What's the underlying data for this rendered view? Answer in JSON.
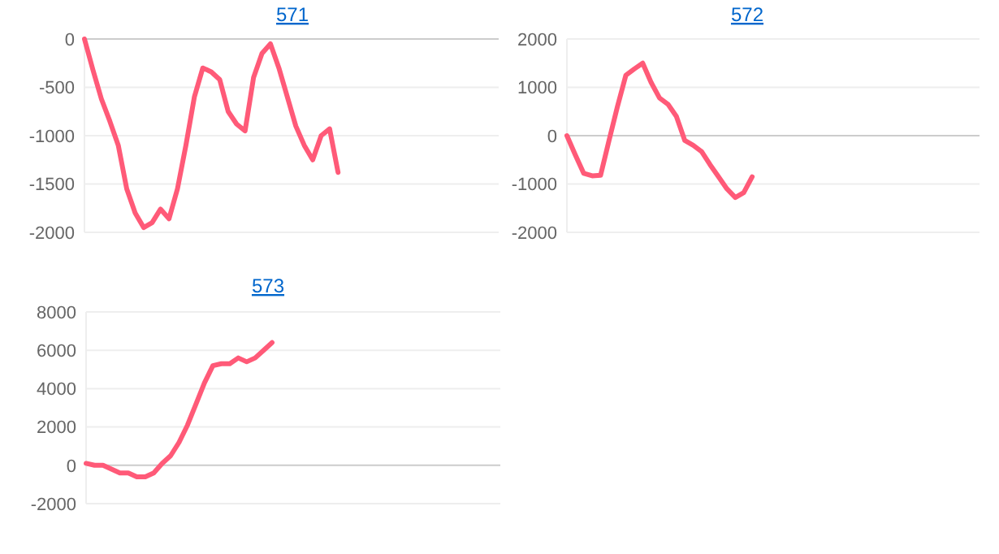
{
  "chart_data": [
    {
      "type": "line",
      "title": "571",
      "categories": [
        null,
        null,
        null,
        null,
        null,
        null,
        null,
        null,
        null,
        null,
        null,
        null,
        null,
        null,
        null,
        null,
        null,
        null,
        null,
        null,
        null,
        null,
        null,
        null,
        null,
        null,
        null,
        null,
        null,
        null,
        null,
        null,
        null,
        null,
        null,
        null,
        null,
        null,
        null,
        null,
        null,
        null,
        null,
        null,
        null,
        null,
        null,
        null,
        null,
        null
      ],
      "series": [
        {
          "color": "#ff5a78",
          "values": [
            0,
            -320,
            -620,
            -850,
            -1100,
            -1550,
            -1800,
            -1950,
            -1900,
            -1760,
            -1860,
            -1550,
            -1100,
            -600,
            -300,
            -340,
            -420,
            -750,
            -880,
            -950,
            -400,
            -150,
            -50,
            -300,
            -600,
            -900,
            -1100,
            -1250,
            -1000,
            -930,
            -1380,
            null,
            null,
            null,
            null,
            null,
            null,
            null,
            null,
            null,
            null,
            null,
            null,
            null,
            null,
            null,
            null,
            null,
            null,
            null
          ]
        }
      ],
      "ylim": [
        -2000,
        0
      ],
      "yticks": [
        -2000,
        -1500,
        -1000,
        -500,
        0
      ],
      "grid": "y",
      "marker": "none",
      "line_style": "solid",
      "tick_labels": "y"
    },
    {
      "type": "line",
      "title": "572",
      "categories": [
        null,
        null,
        null,
        null,
        null,
        null,
        null,
        null,
        null,
        null,
        null,
        null,
        null,
        null,
        null,
        null,
        null,
        null,
        null,
        null,
        null,
        null,
        null,
        null,
        null,
        null,
        null,
        null,
        null,
        null,
        null,
        null,
        null,
        null,
        null,
        null,
        null,
        null,
        null,
        null,
        null,
        null,
        null,
        null,
        null,
        null,
        null,
        null,
        null,
        null
      ],
      "series": [
        {
          "color": "#ff5a78",
          "values": [
            0,
            -400,
            -780,
            -830,
            -820,
            -100,
            600,
            1250,
            1380,
            1500,
            1100,
            780,
            650,
            400,
            -100,
            -200,
            -330,
            -600,
            -850,
            -1100,
            -1280,
            -1180,
            -850,
            null,
            null,
            null,
            null,
            null,
            null,
            null,
            null,
            null,
            null,
            null,
            null,
            null,
            null,
            null,
            null,
            null,
            null,
            null,
            null,
            null,
            null,
            null,
            null,
            null,
            null,
            null
          ]
        }
      ],
      "ylim": [
        -2000,
        2000
      ],
      "yticks": [
        -2000,
        -1000,
        0,
        1000,
        2000
      ],
      "grid": "y",
      "marker": "none",
      "line_style": "solid",
      "tick_labels": "y"
    },
    {
      "type": "line",
      "title": "573",
      "categories": [
        null,
        null,
        null,
        null,
        null,
        null,
        null,
        null,
        null,
        null,
        null,
        null,
        null,
        null,
        null,
        null,
        null,
        null,
        null,
        null,
        null,
        null,
        null,
        null,
        null,
        null,
        null,
        null,
        null,
        null,
        null,
        null,
        null,
        null,
        null,
        null,
        null,
        null,
        null,
        null,
        null,
        null,
        null,
        null,
        null,
        null,
        null,
        null,
        null,
        null
      ],
      "series": [
        {
          "color": "#ff5a78",
          "values": [
            100,
            0,
            0,
            -200,
            -400,
            -400,
            -600,
            -600,
            -400,
            100,
            500,
            1200,
            2100,
            3200,
            4300,
            5200,
            5300,
            5300,
            5600,
            5400,
            5600,
            6000,
            6400,
            null,
            null,
            null,
            null,
            null,
            null,
            null,
            null,
            null,
            null,
            null,
            null,
            null,
            null,
            null,
            null,
            null,
            null,
            null,
            null,
            null,
            null,
            null,
            null,
            null,
            null,
            null
          ]
        }
      ],
      "ylim": [
        -2000,
        8000
      ],
      "yticks": [
        -2000,
        0,
        2000,
        4000,
        6000,
        8000
      ],
      "grid": "y",
      "marker": "none",
      "line_style": "solid",
      "tick_labels": "y"
    }
  ]
}
